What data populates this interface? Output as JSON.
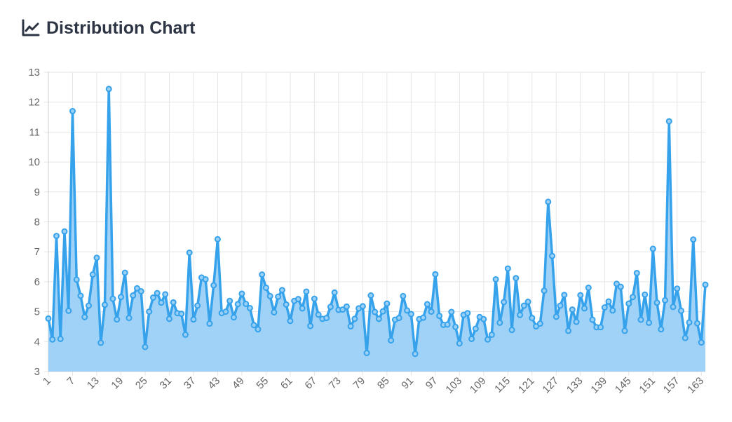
{
  "header": {
    "title": "Distribution Chart",
    "icon": "line-chart-icon"
  },
  "colors": {
    "line": "#36a2eb",
    "fill": "#9ad0f5",
    "grid": "#e5e5e5",
    "text": "#666666",
    "title": "#2d3544"
  },
  "chart_data": {
    "type": "area",
    "title": "Distribution Chart",
    "xlabel": "",
    "ylabel": "",
    "ylim": [
      3,
      13
    ],
    "yticks": [
      3,
      4,
      5,
      6,
      7,
      8,
      9,
      10,
      11,
      12,
      13
    ],
    "x": [
      1,
      2,
      3,
      4,
      5,
      6,
      7,
      8,
      9,
      10,
      11,
      12,
      13,
      14,
      15,
      16,
      17,
      18,
      19,
      20,
      21,
      22,
      23,
      24,
      25,
      26,
      27,
      28,
      29,
      30,
      31,
      32,
      33,
      34,
      35,
      36,
      37,
      38,
      39,
      40,
      41,
      42,
      43,
      44,
      45,
      46,
      47,
      48,
      49,
      50,
      51,
      52,
      53,
      54,
      55,
      56,
      57,
      58,
      59,
      60,
      61,
      62,
      63,
      64,
      65,
      66,
      67,
      68,
      69,
      70,
      71,
      72,
      73,
      74,
      75,
      76,
      77,
      78,
      79,
      80,
      81,
      82,
      83,
      84,
      85,
      86,
      87,
      88,
      89,
      90,
      91,
      92,
      93,
      94,
      95,
      96,
      97,
      98,
      99,
      100,
      101,
      102,
      103,
      104,
      105,
      106,
      107,
      108,
      109,
      110,
      111,
      112,
      113,
      114,
      115,
      116,
      117,
      118,
      119,
      120,
      121,
      122,
      123,
      124,
      125,
      126,
      127,
      128,
      129,
      130,
      131,
      132,
      133,
      134,
      135,
      136,
      137,
      138,
      139,
      140,
      141,
      142,
      143,
      144,
      145,
      146,
      147,
      148,
      149,
      150,
      151,
      152,
      153,
      154,
      155,
      156,
      157,
      158,
      159,
      160,
      161,
      162,
      163,
      164
    ],
    "xticks": [
      1,
      7,
      13,
      19,
      25,
      31,
      37,
      43,
      49,
      55,
      61,
      67,
      73,
      79,
      85,
      91,
      97,
      103,
      109,
      115,
      121,
      127,
      133,
      139,
      145,
      151,
      157,
      163
    ],
    "values": [
      4.77,
      4.07,
      7.53,
      4.09,
      7.68,
      5.03,
      11.7,
      6.07,
      5.53,
      4.82,
      5.2,
      6.24,
      6.8,
      3.96,
      5.23,
      12.44,
      5.43,
      4.74,
      5.49,
      6.3,
      4.79,
      5.54,
      5.78,
      5.68,
      3.82,
      5.0,
      5.47,
      5.62,
      5.3,
      5.58,
      4.76,
      5.31,
      4.95,
      4.93,
      4.23,
      6.97,
      4.74,
      5.2,
      6.14,
      6.08,
      4.6,
      5.88,
      7.42,
      4.95,
      5.0,
      5.36,
      4.81,
      5.25,
      5.6,
      5.26,
      5.12,
      4.55,
      4.41,
      6.24,
      5.8,
      5.52,
      4.98,
      5.5,
      5.72,
      5.24,
      4.69,
      5.36,
      5.42,
      5.11,
      5.67,
      4.52,
      5.43,
      4.9,
      4.76,
      4.79,
      5.16,
      5.64,
      5.06,
      5.07,
      5.17,
      4.51,
      4.76,
      5.11,
      5.18,
      3.62,
      5.54,
      4.99,
      4.76,
      5.01,
      5.27,
      4.04,
      4.73,
      4.79,
      5.52,
      5.04,
      4.92,
      3.59,
      4.75,
      4.8,
      5.25,
      5.0,
      6.25,
      4.86,
      4.56,
      4.57,
      4.99,
      4.49,
      3.94,
      4.89,
      4.95,
      4.09,
      4.43,
      4.82,
      4.75,
      4.07,
      4.23,
      6.08,
      4.63,
      5.32,
      6.44,
      4.39,
      6.12,
      4.89,
      5.2,
      5.33,
      4.79,
      4.51,
      4.6,
      5.7,
      8.67,
      6.86,
      4.83,
      5.2,
      5.56,
      4.36,
      5.07,
      4.66,
      5.55,
      5.11,
      5.8,
      4.73,
      4.48,
      4.48,
      5.14,
      5.34,
      5.04,
      5.93,
      5.83,
      4.36,
      5.27,
      5.49,
      6.29,
      4.73,
      5.57,
      4.63,
      7.1,
      5.3,
      4.41,
      5.38,
      11.36,
      5.16,
      5.77,
      5.03,
      4.12,
      4.64,
      7.41,
      4.61,
      3.97,
      5.9
    ]
  }
}
